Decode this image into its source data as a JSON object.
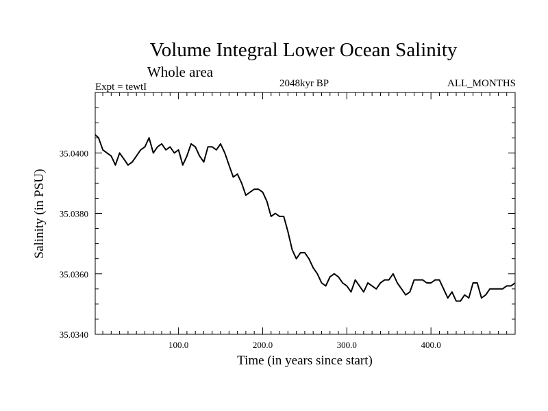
{
  "chart_data": {
    "type": "line",
    "title": "Volume Integral Lower Ocean Salinity",
    "subtitle": "Whole area",
    "annotations": {
      "left": "Expt = tewtI",
      "center": "2048kyr BP",
      "right": "ALL_MONTHS"
    },
    "xlabel": "Time (in years since start)",
    "ylabel": "Salinity (in PSU)",
    "xlim": [
      1,
      500
    ],
    "ylim": [
      35.034,
      35.042
    ],
    "x_ticks": [
      100,
      200,
      300,
      400
    ],
    "x_tick_labels": [
      "100.0",
      "200.0",
      "300.0",
      "400.0"
    ],
    "y_ticks": [
      35.034,
      35.036,
      35.038,
      35.04
    ],
    "y_tick_labels": [
      "35.0340",
      "35.0360",
      "35.0380",
      "35.0400"
    ],
    "grid": false,
    "series": [
      {
        "name": "Salinity",
        "x": [
          1,
          5,
          10,
          15,
          20,
          25,
          30,
          35,
          40,
          45,
          50,
          55,
          60,
          65,
          70,
          75,
          80,
          85,
          90,
          95,
          100,
          105,
          110,
          115,
          120,
          125,
          130,
          135,
          140,
          145,
          150,
          155,
          160,
          165,
          170,
          175,
          180,
          185,
          190,
          195,
          200,
          205,
          210,
          215,
          220,
          225,
          230,
          235,
          240,
          245,
          250,
          255,
          260,
          265,
          270,
          275,
          280,
          285,
          290,
          295,
          300,
          305,
          310,
          315,
          320,
          325,
          330,
          335,
          340,
          345,
          350,
          355,
          360,
          365,
          370,
          375,
          380,
          385,
          390,
          395,
          400,
          405,
          410,
          415,
          420,
          425,
          430,
          435,
          440,
          445,
          450,
          455,
          460,
          465,
          470,
          475,
          480,
          485,
          490,
          495,
          500
        ],
        "values": [
          35.0406,
          35.0405,
          35.0401,
          35.04,
          35.0399,
          35.0396,
          35.04,
          35.0398,
          35.0396,
          35.0397,
          35.0399,
          35.0401,
          35.0402,
          35.0405,
          35.04,
          35.0402,
          35.0403,
          35.0401,
          35.0402,
          35.04,
          35.0401,
          35.0396,
          35.0399,
          35.0403,
          35.0402,
          35.0399,
          35.0397,
          35.0402,
          35.0402,
          35.0401,
          35.0403,
          35.04,
          35.0396,
          35.0392,
          35.0393,
          35.039,
          35.0386,
          35.0387,
          35.0388,
          35.0388,
          35.0387,
          35.0384,
          35.0379,
          35.038,
          35.0379,
          35.0379,
          35.0374,
          35.0368,
          35.0365,
          35.0367,
          35.0367,
          35.0365,
          35.0362,
          35.036,
          35.0357,
          35.0356,
          35.0359,
          35.036,
          35.0359,
          35.0357,
          35.0356,
          35.0354,
          35.0358,
          35.0356,
          35.0354,
          35.0357,
          35.0356,
          35.0355,
          35.0357,
          35.0358,
          35.0358,
          35.036,
          35.0357,
          35.0355,
          35.0353,
          35.0354,
          35.0358,
          35.0358,
          35.0358,
          35.0357,
          35.0357,
          35.0358,
          35.0358,
          35.0355,
          35.0352,
          35.0354,
          35.0351,
          35.0351,
          35.0353,
          35.0352,
          35.0357,
          35.0357,
          35.0352,
          35.0353,
          35.0355,
          35.0355,
          35.0355,
          35.0355,
          35.0356,
          35.0356,
          35.0357
        ]
      }
    ]
  }
}
